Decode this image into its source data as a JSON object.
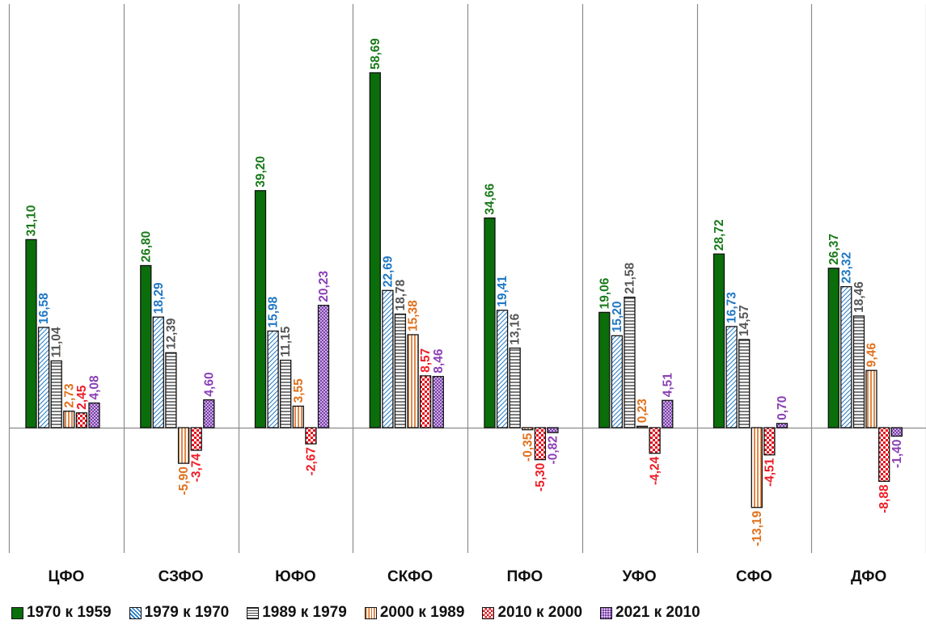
{
  "chart_data": {
    "type": "bar",
    "title": "",
    "xlabel": "",
    "ylabel": "",
    "categories": [
      "ЦФО",
      "СЗФО",
      "ЮФО",
      "СКФО",
      "ПФО",
      "УФО",
      "СФО",
      "ДФО"
    ],
    "labels": [
      [
        "31,10",
        "16,58",
        "11,04",
        "2,73",
        "2,45",
        "4,08"
      ],
      [
        "26,80",
        "18,29",
        "12,39",
        "-5,90",
        "-3,74",
        "4,60"
      ],
      [
        "39,20",
        "15,98",
        "11,15",
        "3,55",
        "-2,67",
        "20,23"
      ],
      [
        "58,69",
        "22,69",
        "18,78",
        "15,38",
        "8,57",
        "8,46"
      ],
      [
        "34,66",
        "19,41",
        "13,16",
        "-0,35",
        "-5,30",
        "-0,82"
      ],
      [
        "19,06",
        "15,20",
        "21,58",
        "0,23",
        "-4,24",
        "4,51"
      ],
      [
        "28,72",
        "16,73",
        "14,57",
        "-13,19",
        "-4,51",
        "0,70"
      ],
      [
        "26,37",
        "23,32",
        "18,46",
        "9,46",
        "-8,88",
        "-1,40"
      ]
    ],
    "series": [
      {
        "name": "1970 к 1959",
        "color": "#0a6e0a",
        "label_color": "#1a7a1a",
        "pattern": "solid",
        "values": [
          31.1,
          26.8,
          39.2,
          58.69,
          34.66,
          19.06,
          28.72,
          26.37
        ]
      },
      {
        "name": "1979 к 1970",
        "color": "#1f77c4",
        "label_color": "#1f77c4",
        "pattern": "diagonal",
        "values": [
          16.58,
          18.29,
          15.98,
          22.69,
          19.41,
          15.2,
          16.73,
          23.32
        ]
      },
      {
        "name": "1989 к 1979",
        "color": "#555555",
        "label_color": "#555555",
        "pattern": "horizontal",
        "values": [
          11.04,
          12.39,
          11.15,
          18.78,
          13.16,
          21.58,
          14.57,
          18.46
        ]
      },
      {
        "name": "2000 к 1989",
        "color": "#d96b1c",
        "label_color": "#e0711c",
        "pattern": "vertical",
        "values": [
          2.73,
          -5.9,
          3.55,
          15.38,
          -0.35,
          0.23,
          -13.19,
          9.46
        ]
      },
      {
        "name": "2010 к 2000",
        "color": "#e8111c",
        "label_color": "#ee1c25",
        "pattern": "checker",
        "values": [
          2.45,
          -3.74,
          -2.67,
          8.57,
          -5.3,
          -4.24,
          -4.51,
          -8.88
        ]
      },
      {
        "name": "2021 к 2010",
        "color": "#7d3fb0",
        "label_color": "#8a3fb5",
        "pattern": "dots",
        "values": [
          4.08,
          4.6,
          20.23,
          8.46,
          -0.82,
          4.51,
          0.7,
          -1.4
        ]
      }
    ],
    "ylim": [
      -21,
      70
    ],
    "grid": false,
    "legend_position": "bottom"
  }
}
